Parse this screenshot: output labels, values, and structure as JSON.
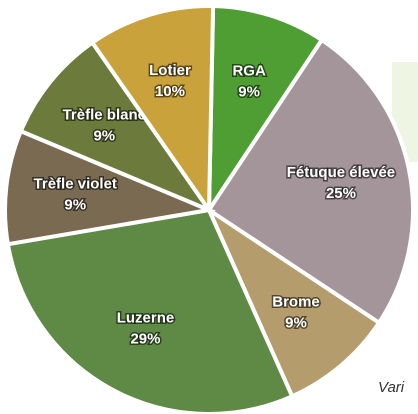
{
  "chart_data": {
    "type": "pie",
    "categories": [
      "RGA",
      "Fétuque élevée",
      "Brome",
      "Luzerne",
      "Trèfle violet",
      "Trèfle blanc",
      "Lotier"
    ],
    "values": [
      9,
      25,
      9,
      29,
      9,
      9,
      10
    ],
    "value_labels": [
      "9%",
      "25%",
      "9%",
      "29%",
      "9%",
      "9%",
      "10%"
    ],
    "colors": [
      "#4f9e34",
      "#a4959b",
      "#b59c6c",
      "#5f8a45",
      "#7b6a52",
      "#6c7a3c",
      "#c9a23c"
    ],
    "annotation": "Vari"
  }
}
